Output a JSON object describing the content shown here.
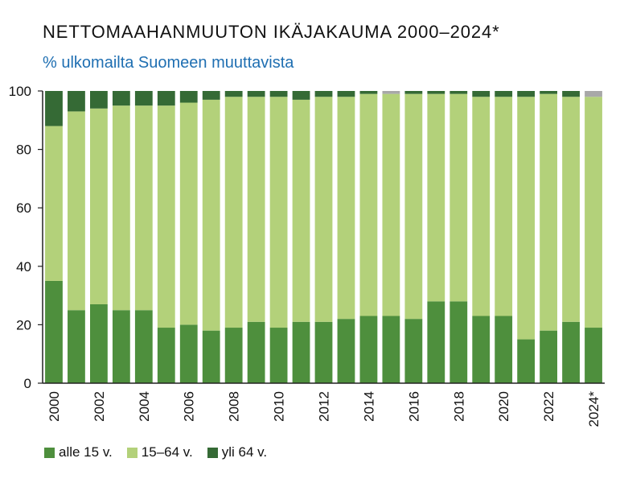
{
  "title": "NETTOMAAHANMUUTON IKÄJAKAUMA 2000–2024*",
  "subtitle": "% ulkomailta Suomeen muuttavista",
  "colors": {
    "title": "#111111",
    "subtitle": "#1f6fb2",
    "alle15": "#4e8f3d",
    "v15_64": "#b3d17a",
    "yli64": "#356a35",
    "other": "#a8a8a8",
    "axis": "#222222"
  },
  "chart_data": {
    "type": "bar",
    "stacked": true,
    "categories": [
      "2000",
      "2001",
      "2002",
      "2003",
      "2004",
      "2005",
      "2006",
      "2007",
      "2008",
      "2009",
      "2010",
      "2011",
      "2012",
      "2013",
      "2014",
      "2015",
      "2016",
      "2017",
      "2018",
      "2019",
      "2020",
      "2021",
      "2022",
      "2023",
      "2024*"
    ],
    "tick_labels": [
      "2000",
      "2002",
      "2004",
      "2006",
      "2008",
      "2010",
      "2012",
      "2014",
      "2016",
      "2018",
      "2020",
      "2022",
      "2024*"
    ],
    "tick_categories": [
      "2000",
      "2002",
      "2004",
      "2006",
      "2008",
      "2010",
      "2012",
      "2014",
      "2016",
      "2018",
      "2020",
      "2022",
      "2024*"
    ],
    "series": [
      {
        "name": "alle 15 v.",
        "values": [
          35,
          25,
          27,
          25,
          25,
          19,
          20,
          18,
          19,
          21,
          19,
          21,
          21,
          22,
          23,
          23,
          22,
          28,
          28,
          23,
          23,
          15,
          18,
          21,
          19
        ]
      },
      {
        "name": "15–64 v.",
        "values": [
          53,
          68,
          67,
          70,
          70,
          76,
          76,
          79,
          79,
          77,
          79,
          76,
          77,
          76,
          76,
          76,
          77,
          71,
          71,
          75,
          75,
          83,
          81,
          77,
          79
        ]
      },
      {
        "name": "yli 64 v.",
        "values": [
          12,
          7,
          6,
          5,
          5,
          5,
          4,
          3,
          2,
          2,
          2,
          3,
          2,
          2,
          1,
          0,
          1,
          1,
          1,
          2,
          2,
          2,
          1,
          2,
          0
        ]
      },
      {
        "values": [
          0,
          0,
          0,
          0,
          0,
          0,
          0,
          0,
          0,
          0,
          0,
          0,
          0,
          0,
          0,
          1,
          0,
          0,
          0,
          0,
          0,
          0,
          0,
          0,
          2
        ]
      }
    ],
    "ylim": [
      0,
      100
    ],
    "yticks": [
      0,
      20,
      40,
      60,
      80,
      100
    ],
    "grid": false,
    "legend": "bottom-left"
  }
}
